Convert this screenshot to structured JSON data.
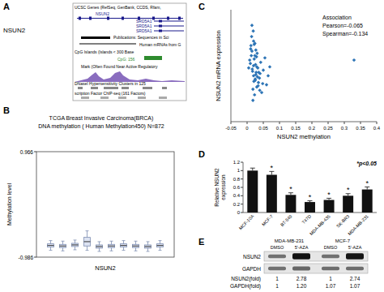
{
  "chart_data": [
    {
      "panel": "B",
      "type": "box",
      "title": "TCGA Breast Invasive Carcinoma(BRCA)",
      "subtitle": "DNA methylation ( Human Methylation450) N=872",
      "xlabel": "NSUN2",
      "ylabel": "Methylation level",
      "ylim": [
        -0.986,
        0.966
      ],
      "yticks": [
        0.966,
        -0.986
      ],
      "tick_labels": "y",
      "color": "#7f8fb3",
      "categories": [
        null,
        null,
        null,
        null,
        null,
        null,
        null,
        null,
        null,
        null
      ],
      "boxes": {
        "min": [
          -0.86,
          -0.87,
          -0.85,
          -0.86,
          -0.88,
          -0.87,
          -0.86,
          -0.87,
          -0.88,
          -0.86
        ],
        "q1": [
          -0.8,
          -0.81,
          -0.79,
          -0.78,
          -0.82,
          -0.81,
          -0.8,
          -0.81,
          -0.82,
          -0.8
        ],
        "median": [
          -0.77,
          -0.78,
          -0.76,
          -0.7,
          -0.79,
          -0.78,
          -0.77,
          -0.78,
          -0.79,
          -0.77
        ],
        "q3": [
          -0.74,
          -0.75,
          -0.73,
          -0.62,
          -0.76,
          -0.75,
          -0.74,
          -0.75,
          -0.76,
          -0.74
        ],
        "max": [
          -0.68,
          -0.69,
          -0.67,
          -0.5,
          -0.7,
          -0.69,
          -0.68,
          -0.69,
          -0.7,
          -0.68
        ]
      }
    },
    {
      "panel": "C",
      "type": "scatter",
      "xlabel": "NSUN2 methylation",
      "ylabel": "NSUN2 mRNA expression",
      "annotations": [
        "Association",
        "Pearson=-0.065",
        "Spearman=-0.134"
      ],
      "xlim": [
        -0.05,
        0.4
      ],
      "xticks": [
        -0.05,
        0,
        0.05,
        0.1,
        0.15,
        0.2,
        0.25,
        0.3,
        0.35,
        0.4
      ],
      "ylim": [
        0,
        10
      ],
      "tick_labels": "x",
      "color": "#2e75b6",
      "marker": "diamond",
      "x": [
        0.01,
        0.02,
        0.015,
        0.025,
        0.03,
        0.02,
        0.018,
        0.022,
        0.028,
        0.035,
        0.012,
        0.016,
        0.024,
        0.03,
        0.04,
        0.019,
        0.021,
        0.026,
        0.033,
        0.045,
        0.008,
        0.014,
        0.027,
        0.031,
        0.038,
        0.017,
        0.023,
        0.029,
        0.05,
        0.06,
        0.011,
        0.02,
        0.025,
        0.032,
        0.042,
        0.015,
        0.022,
        0.034,
        0.055,
        0.07,
        0.005,
        0.018,
        0.024,
        0.036,
        0.048,
        0.013,
        0.027,
        0.039,
        0.065,
        0.33
      ],
      "y": [
        5.2,
        4.1,
        6.3,
        3.8,
        4.9,
        7.2,
        2.9,
        5.6,
        4.4,
        3.5,
        6.8,
        4.7,
        5.9,
        3.1,
        4.3,
        8.1,
        3.6,
        5.1,
        4.8,
        2.6,
        5.5,
        7.6,
        4.2,
        6.1,
        3.9,
        4.5,
        2.4,
        5.8,
        4.6,
        3.3,
        6.5,
        5.0,
        3.7,
        4.0,
        5.3,
        8.6,
        6.9,
        3.2,
        5.7,
        4.9,
        4.8,
        1.9,
        7.0,
        4.4,
        3.4,
        5.9,
        6.4,
        2.8,
        4.1,
        5.5
      ]
    },
    {
      "panel": "D",
      "type": "bar",
      "ylabel": "Relative NSUN2 expression",
      "annotations": [
        "*p<0.05"
      ],
      "categories": [
        "MCF-10A",
        "MCF-7",
        "BT-549",
        "T47D",
        "MDA-MB-435",
        "SK-BR3",
        "MDA-MB-231"
      ],
      "values": [
        1.0,
        0.9,
        0.42,
        0.25,
        0.3,
        0.4,
        0.55
      ],
      "errors": [
        0.06,
        0.08,
        0.05,
        0.03,
        0.04,
        0.05,
        0.06
      ],
      "significance": [
        null,
        "*",
        "*",
        "*",
        "*",
        "*",
        "*"
      ],
      "colors": [
        "#111111",
        "#111111",
        "#111111",
        "#111111",
        "#111111",
        "#111111",
        "#111111"
      ],
      "ylim": [
        0,
        1.2
      ],
      "yticks": [
        0,
        0.2,
        0.4,
        0.6,
        0.8,
        1,
        1.2
      ]
    }
  ],
  "browser_panel": {
    "panel": "A",
    "gene": "NSUN2",
    "tracks": [
      "UCSC Genes (RefSeq, GenBank, CCDS, Rfam,",
      "NSUN2",
      "SRD5A1",
      "SRD5A1",
      "SRD5A1",
      "Publications: Sequences in Sci",
      "Human mRNAs from G",
      "CpG Islands (Islands < 300 Base",
      "CpG: 156",
      "Mark (Often Found Near Active Regulatory",
      "DNaseI Hypersensitivity Clusters in 125",
      "scription Factor ChIP-seq (161 Factors)"
    ]
  },
  "blot_panel": {
    "panel": "E",
    "groups": [
      "MDA-MB-231",
      "MCF-7"
    ],
    "lanes": [
      "DMSO",
      "5'-AZA",
      "DMSO",
      "5'-AZA"
    ],
    "rows": [
      {
        "name": "NSUN2",
        "fold_label": "NSUN2(fold)",
        "fold": [
          1,
          2.78,
          1,
          2.74
        ],
        "fold_labels": [
          "1",
          "2.78",
          "1",
          "2.74"
        ]
      },
      {
        "name": "GAPDH",
        "fold_label": "GAPDH(fold)",
        "fold": [
          1,
          1.2,
          1.07,
          1.07
        ],
        "fold_labels": [
          "1",
          "1.20",
          "1.07",
          "1.07"
        ]
      }
    ]
  }
}
